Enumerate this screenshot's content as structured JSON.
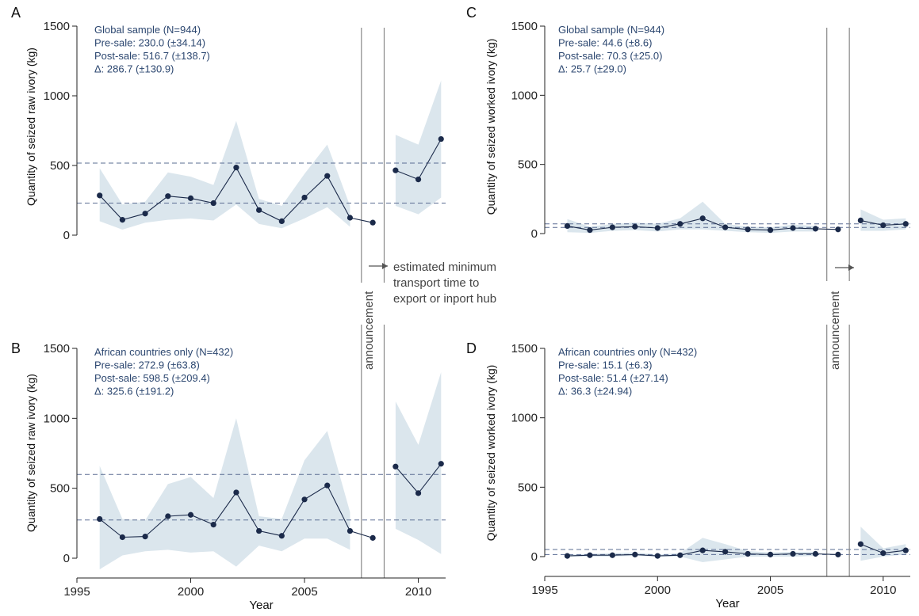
{
  "figure": {
    "announcement_label": "announcement",
    "transport_note": [
      "estimated minimum",
      "transport time to",
      "export or inport hub"
    ],
    "xlabel": "Year"
  },
  "colors": {
    "line": "#1b2a4a",
    "band": "#dbe6ed",
    "dashed": "#5a6c92",
    "stat_text": "#2c4770",
    "vertical": "#888888"
  },
  "chart_data": [
    {
      "panel": "A",
      "type": "line",
      "ylabel": "Quantity of seized raw ivory (kg)",
      "stats": [
        "Global sample (N=944)",
        "Pre-sale: 230.0 (±34.14)",
        "Post-sale: 516.7 (±138.7)",
        "Δ: 286.7 (±130.9)"
      ],
      "xlim": [
        1995,
        2011.2
      ],
      "ylim": [
        0,
        1500
      ],
      "xticks": [
        1995,
        2000,
        2005,
        2010
      ],
      "yticks": [
        0,
        500,
        1000,
        1500
      ],
      "show_xaxis": false,
      "announcement_x": 2007.5,
      "hub_x": 2008.5,
      "pre_mean": 230.0,
      "post_mean": 516.7,
      "segments": [
        {
          "x": [
            1996,
            1997,
            1998,
            1999,
            2000,
            2001,
            2002,
            2003,
            2004,
            2005,
            2006,
            2007,
            2008
          ],
          "y": [
            285,
            110,
            155,
            280,
            265,
            230,
            485,
            180,
            100,
            270,
            425,
            125,
            90
          ],
          "lo": [
            100,
            40,
            90,
            110,
            120,
            105,
            220,
            80,
            50,
            120,
            200,
            60,
            null
          ],
          "hi": [
            480,
            220,
            240,
            450,
            420,
            360,
            820,
            260,
            210,
            440,
            650,
            210,
            null
          ]
        },
        {
          "x": [
            2009,
            2010,
            2011
          ],
          "y": [
            465,
            400,
            690
          ],
          "lo": [
            210,
            150,
            270
          ],
          "hi": [
            720,
            650,
            1110
          ]
        }
      ]
    },
    {
      "panel": "B",
      "type": "line",
      "ylabel": "Quantity of seized raw ivory (kg)",
      "stats": [
        "African countries only (N=432)",
        "Pre-sale: 272.9 (±63.8)",
        "Post-sale: 598.5 (±209.4)",
        "Δ: 325.6 (±191.2)"
      ],
      "xlim": [
        1995,
        2011.2
      ],
      "ylim": [
        0,
        1500
      ],
      "xticks": [
        1995,
        2000,
        2005,
        2010
      ],
      "yticks": [
        0,
        500,
        1000,
        1500
      ],
      "show_xaxis": true,
      "announcement_x": 2007.5,
      "hub_x": 2008.5,
      "pre_mean": 272.9,
      "post_mean": 598.5,
      "segments": [
        {
          "x": [
            1996,
            1997,
            1998,
            1999,
            2000,
            2001,
            2002,
            2003,
            2004,
            2005,
            2006,
            2007,
            2008
          ],
          "y": [
            280,
            150,
            155,
            300,
            310,
            240,
            470,
            195,
            160,
            420,
            520,
            195,
            145
          ],
          "lo": [
            -80,
            20,
            50,
            60,
            40,
            50,
            -60,
            90,
            50,
            140,
            140,
            60,
            null
          ],
          "hi": [
            660,
            280,
            270,
            530,
            580,
            430,
            1000,
            300,
            280,
            700,
            910,
            330,
            null
          ]
        },
        {
          "x": [
            2009,
            2010,
            2011
          ],
          "y": [
            655,
            465,
            675
          ],
          "lo": [
            210,
            130,
            30
          ],
          "hi": [
            1120,
            810,
            1330
          ]
        }
      ]
    },
    {
      "panel": "C",
      "type": "line",
      "ylabel": "Quantity of seized worked ivory (kg)",
      "stats": [
        "Global sample (N=944)",
        "Pre-sale: 44.6 (±8.6)",
        "Post-sale: 70.3 (±25.0)",
        "Δ: 25.7 (±29.0)"
      ],
      "xlim": [
        1995,
        2011.2
      ],
      "ylim": [
        0,
        1500
      ],
      "xticks": [
        1995,
        2000,
        2005,
        2010
      ],
      "yticks": [
        0,
        500,
        1000,
        1500
      ],
      "show_xaxis": false,
      "announcement_x": 2007.5,
      "hub_x": 2008.5,
      "pre_mean": 44.6,
      "post_mean": 70.3,
      "segments": [
        {
          "x": [
            1996,
            1997,
            1998,
            1999,
            2000,
            2001,
            2002,
            2003,
            2004,
            2005,
            2006,
            2007,
            2008
          ],
          "y": [
            55,
            25,
            45,
            50,
            40,
            70,
            110,
            45,
            30,
            25,
            40,
            35,
            30
          ],
          "lo": [
            10,
            5,
            20,
            25,
            15,
            30,
            30,
            20,
            10,
            5,
            15,
            15,
            null
          ],
          "hi": [
            105,
            50,
            70,
            80,
            70,
            110,
            230,
            70,
            50,
            45,
            65,
            55,
            null
          ]
        },
        {
          "x": [
            2009,
            2010,
            2011
          ],
          "y": [
            95,
            60,
            70
          ],
          "lo": [
            20,
            20,
            30
          ],
          "hi": [
            175,
            100,
            110
          ]
        }
      ]
    },
    {
      "panel": "D",
      "type": "line",
      "ylabel": "Quantity of seized worked ivory (kg)",
      "stats": [
        "African countries only (N=432)",
        "Pre-sale: 15.1 (±6.3)",
        "Post-sale: 51.4 (±27.14)",
        "Δ: 36.3 (±24.94)"
      ],
      "xlim": [
        1995,
        2011.2
      ],
      "ylim": [
        0,
        1500
      ],
      "xticks": [
        1995,
        2000,
        2005,
        2010
      ],
      "yticks": [
        0,
        500,
        1000,
        1500
      ],
      "show_xaxis": true,
      "announcement_x": 2007.5,
      "hub_x": 2008.5,
      "pre_mean": 15.1,
      "post_mean": 51.4,
      "segments": [
        {
          "x": [
            1996,
            1997,
            1998,
            1999,
            2000,
            2001,
            2002,
            2003,
            2004,
            2005,
            2006,
            2007,
            2008
          ],
          "y": [
            5,
            10,
            10,
            15,
            5,
            10,
            45,
            35,
            20,
            15,
            20,
            20,
            15
          ],
          "lo": [
            0,
            0,
            0,
            5,
            0,
            0,
            -40,
            -20,
            0,
            0,
            0,
            5,
            null
          ],
          "hi": [
            15,
            20,
            25,
            30,
            15,
            25,
            135,
            90,
            40,
            30,
            35,
            35,
            null
          ]
        },
        {
          "x": [
            2009,
            2010,
            2011
          ],
          "y": [
            90,
            25,
            45
          ],
          "lo": [
            -30,
            0,
            15
          ],
          "hi": [
            215,
            60,
            90
          ]
        }
      ]
    }
  ]
}
